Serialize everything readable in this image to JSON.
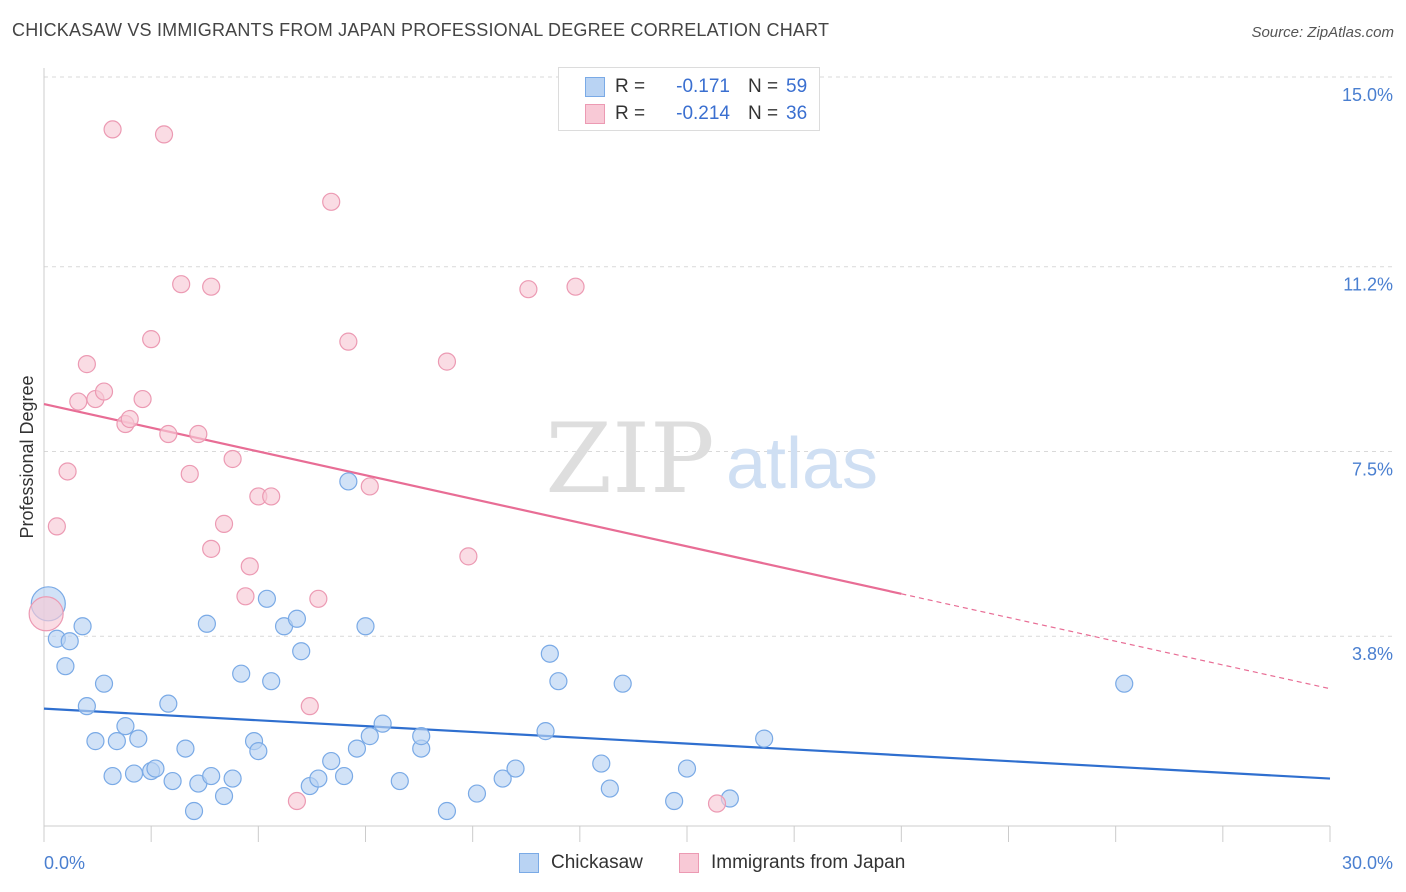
{
  "title": "CHICKASAW VS IMMIGRANTS FROM JAPAN PROFESSIONAL DEGREE CORRELATION CHART",
  "source": "Source: ZipAtlas.com",
  "watermark": {
    "zip": "ZIP",
    "atlas": "atlas"
  },
  "colors": {
    "blue_fill": "#b9d3f3",
    "blue_stroke": "#7aaae6",
    "blue_line": "#2f6fcf",
    "pink_fill": "#f8c9d6",
    "pink_stroke": "#ec9ab3",
    "pink_line": "#e86d95",
    "tick_text": "#4a7fd0",
    "grid": "#d9d9d9"
  },
  "legend": {
    "rows": [
      {
        "r_label": "R =",
        "r_value": "-0.171",
        "n_label": "N =",
        "n_value": "59"
      },
      {
        "r_label": "R =",
        "r_value": "-0.214",
        "n_label": "N =",
        "n_value": "36"
      }
    ]
  },
  "bottom_legend": [
    "Chickasaw",
    "Immigrants from Japan"
  ],
  "chart_data": {
    "type": "scatter",
    "title": "CHICKASAW VS IMMIGRANTS FROM JAPAN PROFESSIONAL DEGREE CORRELATION CHART",
    "xlabel": "",
    "ylabel": "Professional Degree",
    "xlim": [
      0,
      30
    ],
    "ylim": [
      0,
      15.3
    ],
    "x_tick_labels": [
      "0.0%",
      "30.0%"
    ],
    "y_ticks": [
      3.8,
      7.5,
      11.2,
      15.0
    ],
    "y_tick_labels": [
      "3.8%",
      "7.5%",
      "11.2%",
      "15.0%"
    ],
    "series": [
      {
        "name": "Chickasaw",
        "r": -0.171,
        "n": 59,
        "trend": {
          "x0": 0,
          "y0": 2.35,
          "x1": 30,
          "y1": 0.95,
          "solid_until": 30
        },
        "points": [
          {
            "x": 0.1,
            "y": 4.45,
            "big": true
          },
          {
            "x": 0.3,
            "y": 3.75
          },
          {
            "x": 0.6,
            "y": 3.7
          },
          {
            "x": 0.5,
            "y": 3.2
          },
          {
            "x": 0.9,
            "y": 4.0
          },
          {
            "x": 1.4,
            "y": 2.85
          },
          {
            "x": 1.0,
            "y": 2.4
          },
          {
            "x": 1.2,
            "y": 1.7
          },
          {
            "x": 1.6,
            "y": 1.0
          },
          {
            "x": 1.7,
            "y": 1.7
          },
          {
            "x": 1.9,
            "y": 2.0
          },
          {
            "x": 2.2,
            "y": 1.75
          },
          {
            "x": 2.1,
            "y": 1.05
          },
          {
            "x": 2.5,
            "y": 1.1
          },
          {
            "x": 2.6,
            "y": 1.15
          },
          {
            "x": 2.9,
            "y": 2.45
          },
          {
            "x": 3.0,
            "y": 0.9
          },
          {
            "x": 3.3,
            "y": 1.55
          },
          {
            "x": 3.5,
            "y": 0.3
          },
          {
            "x": 3.6,
            "y": 0.85
          },
          {
            "x": 3.9,
            "y": 1.0
          },
          {
            "x": 3.8,
            "y": 4.05
          },
          {
            "x": 4.2,
            "y": 0.6
          },
          {
            "x": 4.4,
            "y": 0.95
          },
          {
            "x": 4.6,
            "y": 3.05
          },
          {
            "x": 4.9,
            "y": 1.7
          },
          {
            "x": 5.0,
            "y": 1.5
          },
          {
            "x": 5.2,
            "y": 4.55
          },
          {
            "x": 5.3,
            "y": 2.9
          },
          {
            "x": 5.6,
            "y": 4.0
          },
          {
            "x": 5.9,
            "y": 4.15
          },
          {
            "x": 6.0,
            "y": 3.5
          },
          {
            "x": 6.2,
            "y": 0.8
          },
          {
            "x": 6.4,
            "y": 0.95
          },
          {
            "x": 6.7,
            "y": 1.3
          },
          {
            "x": 7.0,
            "y": 1.0
          },
          {
            "x": 7.1,
            "y": 6.9
          },
          {
            "x": 7.3,
            "y": 1.55
          },
          {
            "x": 7.5,
            "y": 4.0
          },
          {
            "x": 7.6,
            "y": 1.8
          },
          {
            "x": 7.9,
            "y": 2.05
          },
          {
            "x": 8.3,
            "y": 0.9
          },
          {
            "x": 8.8,
            "y": 1.55
          },
          {
            "x": 8.8,
            "y": 1.8
          },
          {
            "x": 9.4,
            "y": 0.3
          },
          {
            "x": 10.1,
            "y": 0.65
          },
          {
            "x": 10.7,
            "y": 0.95
          },
          {
            "x": 11.0,
            "y": 1.15
          },
          {
            "x": 11.7,
            "y": 1.9
          },
          {
            "x": 11.8,
            "y": 3.45
          },
          {
            "x": 12.0,
            "y": 2.9
          },
          {
            "x": 13.0,
            "y": 1.25
          },
          {
            "x": 13.2,
            "y": 0.75
          },
          {
            "x": 13.5,
            "y": 2.85
          },
          {
            "x": 14.7,
            "y": 0.5
          },
          {
            "x": 15.0,
            "y": 1.15
          },
          {
            "x": 16.0,
            "y": 0.55
          },
          {
            "x": 16.8,
            "y": 1.75
          },
          {
            "x": 25.2,
            "y": 2.85
          }
        ]
      },
      {
        "name": "Immigrants from Japan",
        "r": -0.214,
        "n": 36,
        "trend": {
          "x0": 0,
          "y0": 8.45,
          "x1": 30,
          "y1": 2.75,
          "solid_until": 20.0
        },
        "points": [
          {
            "x": 0.05,
            "y": 4.25,
            "big": true
          },
          {
            "x": 0.3,
            "y": 6.0
          },
          {
            "x": 0.55,
            "y": 7.1
          },
          {
            "x": 0.8,
            "y": 8.5
          },
          {
            "x": 1.0,
            "y": 9.25
          },
          {
            "x": 1.2,
            "y": 8.55
          },
          {
            "x": 1.4,
            "y": 8.7
          },
          {
            "x": 1.6,
            "y": 13.95
          },
          {
            "x": 1.9,
            "y": 8.05
          },
          {
            "x": 2.0,
            "y": 8.15
          },
          {
            "x": 2.3,
            "y": 8.55
          },
          {
            "x": 2.5,
            "y": 9.75
          },
          {
            "x": 2.8,
            "y": 13.85
          },
          {
            "x": 2.9,
            "y": 7.85
          },
          {
            "x": 3.2,
            "y": 10.85
          },
          {
            "x": 3.4,
            "y": 7.05
          },
          {
            "x": 3.6,
            "y": 7.85
          },
          {
            "x": 3.9,
            "y": 10.8
          },
          {
            "x": 3.9,
            "y": 5.55
          },
          {
            "x": 4.2,
            "y": 6.05
          },
          {
            "x": 4.4,
            "y": 7.35
          },
          {
            "x": 4.7,
            "y": 4.6
          },
          {
            "x": 4.8,
            "y": 5.2
          },
          {
            "x": 5.0,
            "y": 6.6
          },
          {
            "x": 5.3,
            "y": 6.6
          },
          {
            "x": 5.9,
            "y": 0.5
          },
          {
            "x": 6.2,
            "y": 2.4
          },
          {
            "x": 6.4,
            "y": 4.55
          },
          {
            "x": 6.7,
            "y": 12.5
          },
          {
            "x": 7.1,
            "y": 9.7
          },
          {
            "x": 7.6,
            "y": 6.8
          },
          {
            "x": 9.4,
            "y": 9.3
          },
          {
            "x": 9.9,
            "y": 5.4
          },
          {
            "x": 11.3,
            "y": 10.75
          },
          {
            "x": 12.4,
            "y": 10.8
          },
          {
            "x": 15.7,
            "y": 0.45
          }
        ]
      }
    ]
  }
}
